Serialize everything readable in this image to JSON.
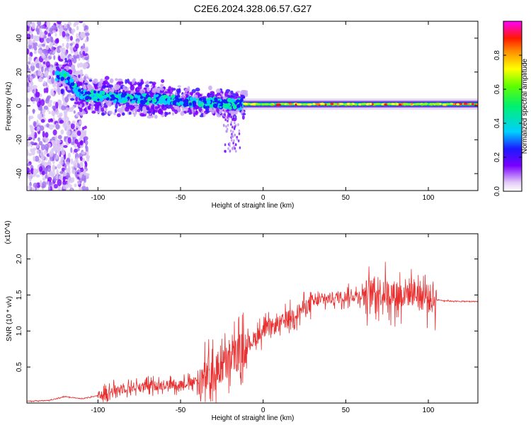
{
  "title": "C2E6.2024.328.06.57.G27",
  "chart_data": [
    {
      "type": "heatmap",
      "xlabel": "Height of straight line (km)",
      "ylabel": "Frequency (Hz)",
      "xlim": [
        -143,
        130
      ],
      "ylim": [
        -50,
        50
      ],
      "x_ticks": [
        "-100",
        "-50",
        "0",
        "50",
        "100"
      ],
      "y_ticks": [
        "-40",
        "-20",
        "0",
        "20",
        "40"
      ],
      "colorbar": {
        "label": "Normalized spectral amplitude",
        "range": [
          0,
          1
        ],
        "ticks": [
          "0.0",
          "0.2",
          "0.4",
          "0.6",
          "0.8"
        ]
      },
      "center_frequency_trace": [
        {
          "x": -120,
          "y": 18
        },
        {
          "x": -115,
          "y": 12
        },
        {
          "x": -110,
          "y": 6
        },
        {
          "x": -100,
          "y": 6
        },
        {
          "x": -90,
          "y": 5
        },
        {
          "x": -80,
          "y": 5
        },
        {
          "x": -70,
          "y": 4
        },
        {
          "x": -60,
          "y": 4
        },
        {
          "x": -50,
          "y": 3
        },
        {
          "x": -40,
          "y": 2
        },
        {
          "x": -30,
          "y": 2
        },
        {
          "x": -20,
          "y": 1
        },
        {
          "x": -10,
          "y": 1
        },
        {
          "x": 0,
          "y": 1
        },
        {
          "x": 50,
          "y": 1
        },
        {
          "x": 100,
          "y": 1
        },
        {
          "x": 130,
          "y": 1
        }
      ]
    },
    {
      "type": "line",
      "xlabel": "Height of straight line (km)",
      "ylabel": "SNR (10 * v/v)",
      "y_multiplier": "(x10^4)",
      "xlim": [
        -143,
        130
      ],
      "ylim": [
        0,
        23500
      ],
      "x_ticks": [
        "-100",
        "-50",
        "0",
        "50",
        "100"
      ],
      "y_ticks": [
        "0.5",
        "1.0",
        "1.5",
        "2.0"
      ],
      "color": "#e83030",
      "x": [
        -143,
        -130,
        -120,
        -110,
        -100,
        -90,
        -80,
        -70,
        -60,
        -50,
        -40,
        -30,
        -20,
        -10,
        0,
        10,
        20,
        30,
        40,
        50,
        60,
        70,
        80,
        90,
        100,
        110,
        120,
        130
      ],
      "y": [
        250,
        350,
        900,
        600,
        1000,
        1800,
        2200,
        2300,
        2500,
        2600,
        3000,
        4000,
        6000,
        8000,
        10000,
        11000,
        12500,
        14000,
        14500,
        14800,
        15000,
        15500,
        15000,
        15500,
        14500,
        14200,
        14100,
        14100
      ]
    }
  ]
}
